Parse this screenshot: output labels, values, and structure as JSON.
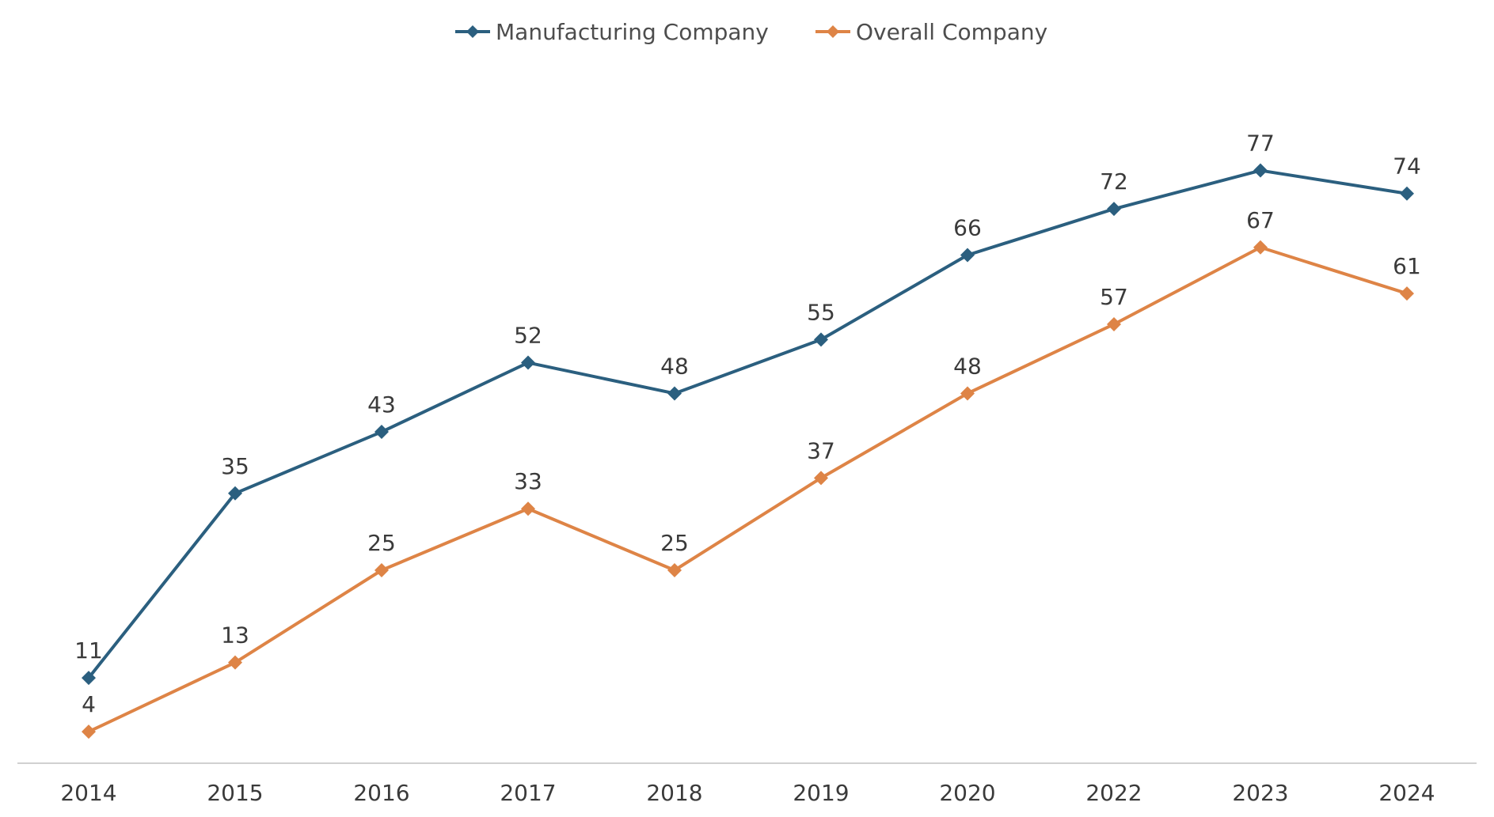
{
  "chart_data": {
    "type": "line",
    "title": "",
    "xlabel": "",
    "ylabel": "",
    "categories": [
      "2014",
      "2015",
      "2016",
      "2017",
      "2018",
      "2019",
      "2020",
      "2022",
      "2023",
      "2024"
    ],
    "ylim": [
      0,
      90
    ],
    "grid": false,
    "legend": "top-center",
    "series": [
      {
        "name": "Manufacturing Company",
        "color": "#2b5f7f",
        "values": [
          11,
          35,
          43,
          52,
          48,
          55,
          66,
          72,
          77,
          74
        ]
      },
      {
        "name": "Overall Company",
        "color": "#de8446",
        "values": [
          4,
          13,
          25,
          33,
          25,
          37,
          48,
          57,
          67,
          61
        ]
      }
    ]
  }
}
